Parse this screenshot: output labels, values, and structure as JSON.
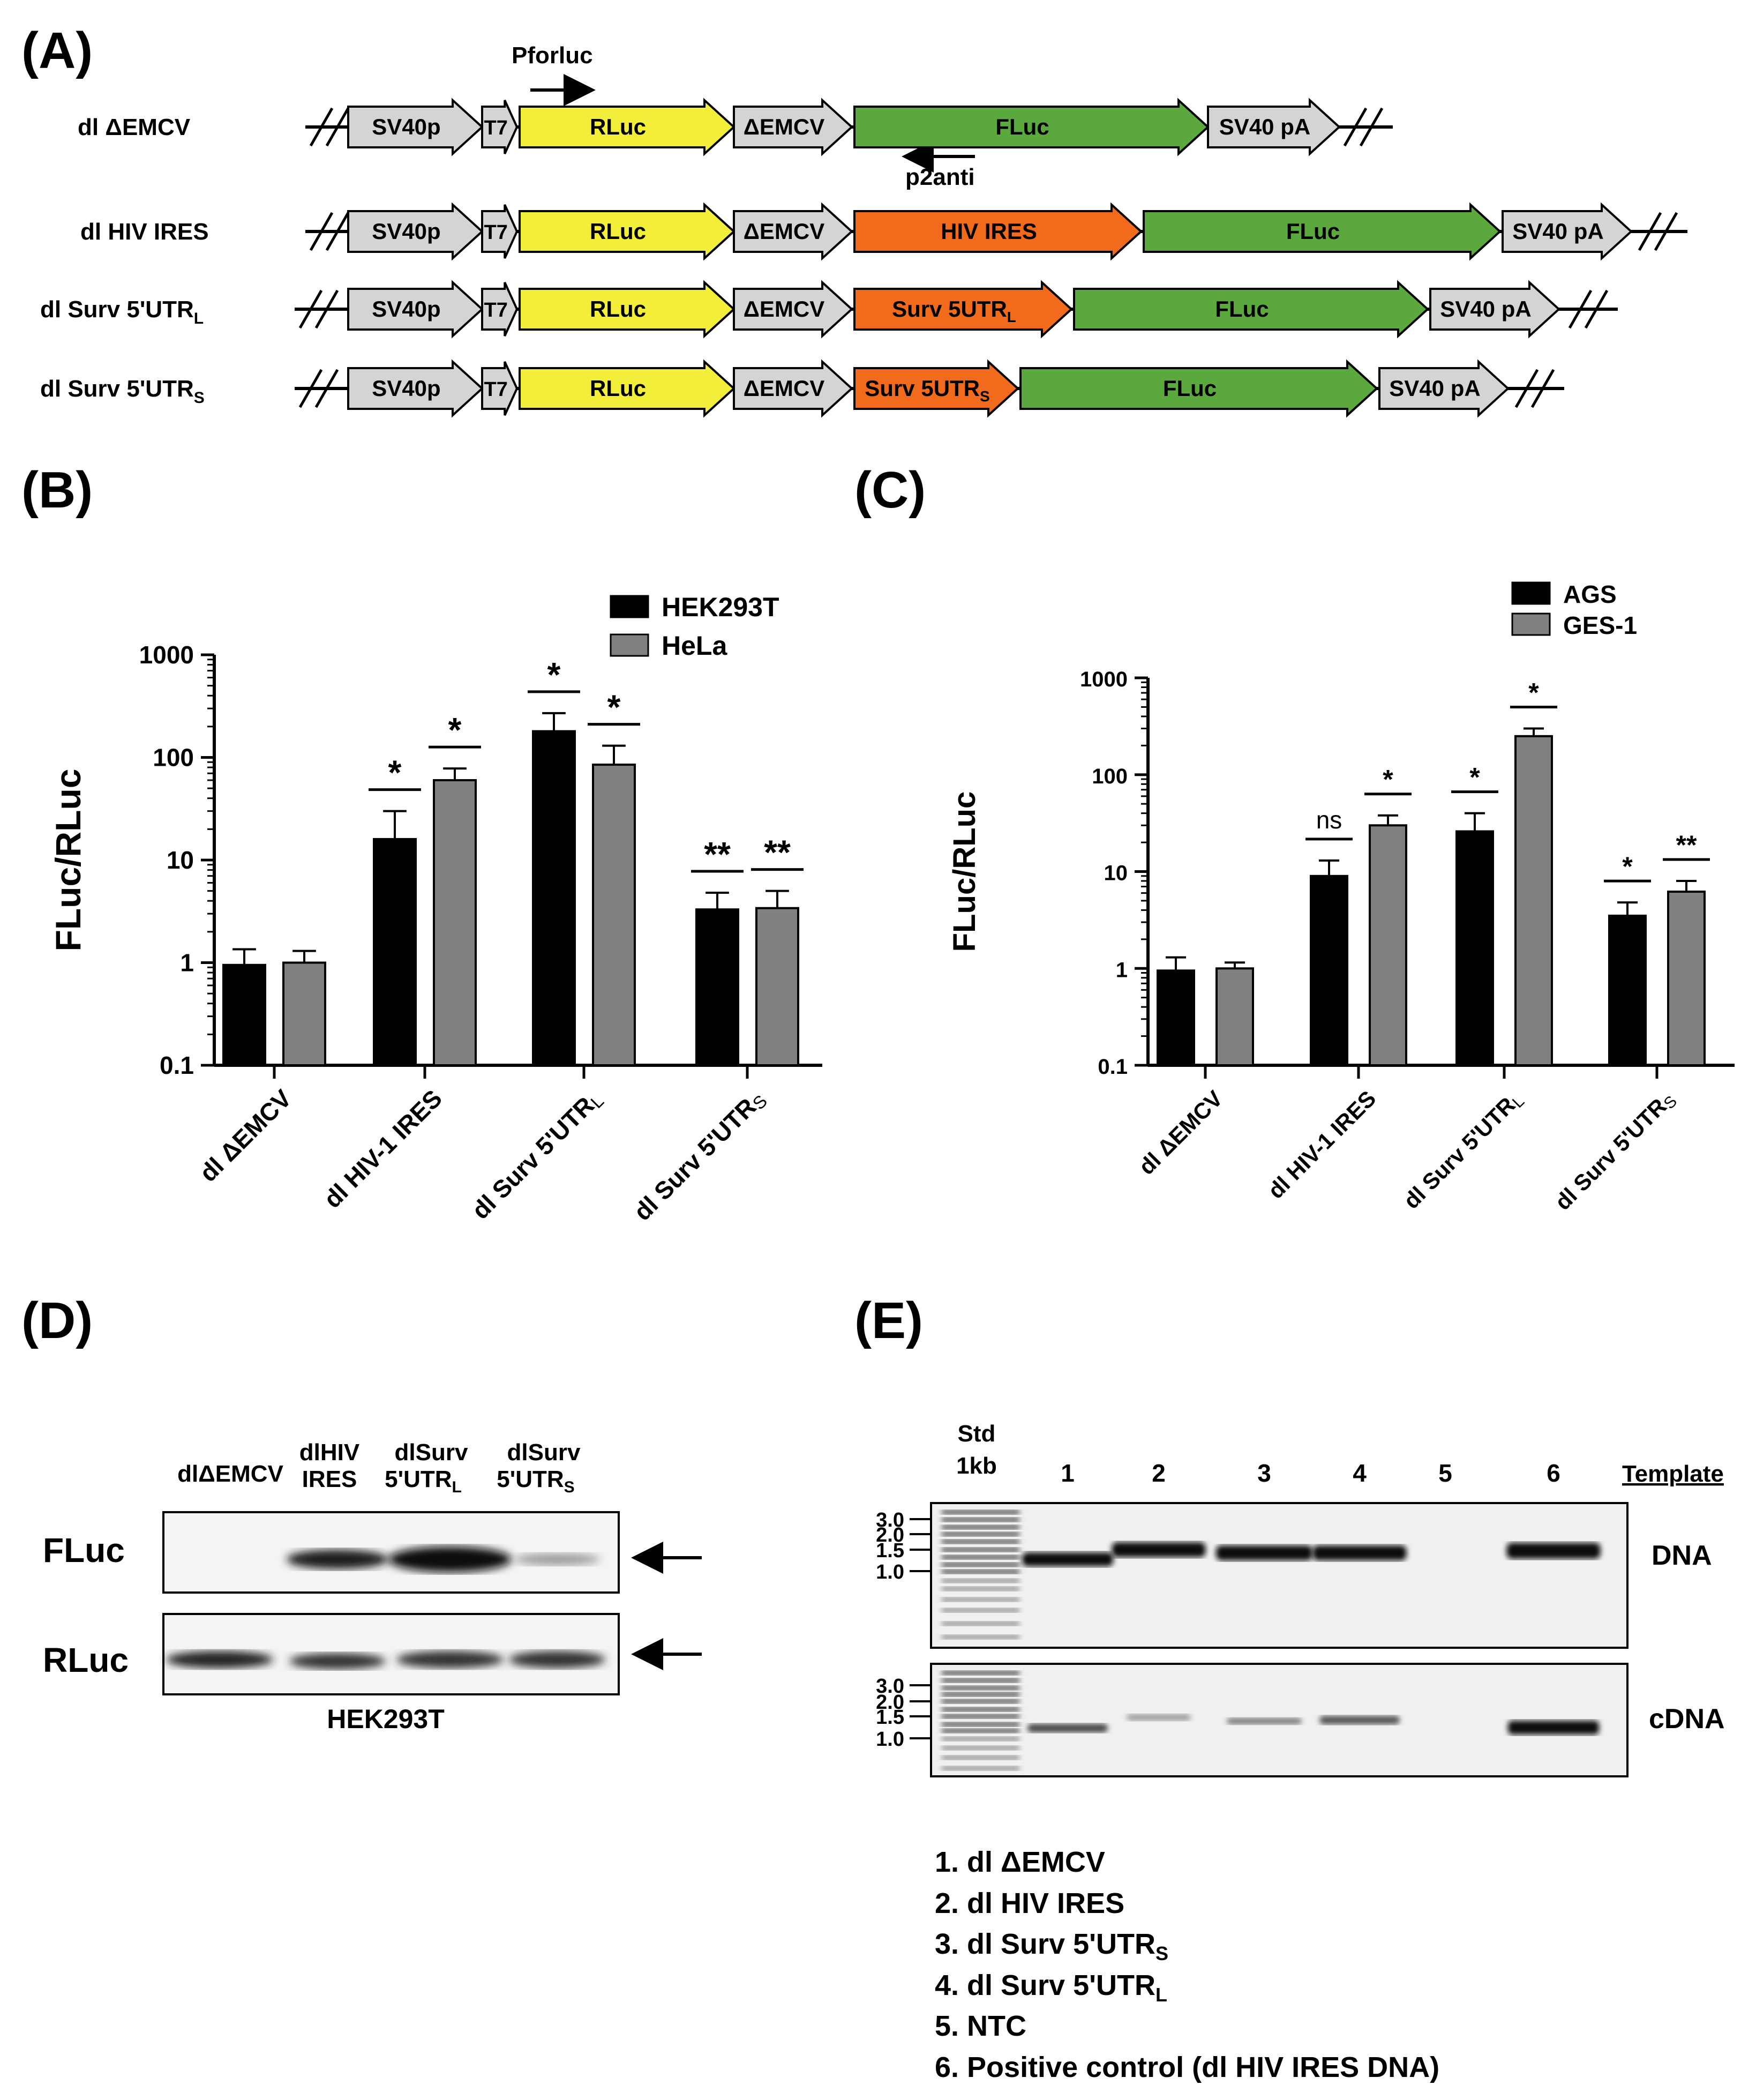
{
  "panels": {
    "A": "(A)",
    "B": "(B)",
    "C": "(C)",
    "D": "(D)",
    "E": "(E)"
  },
  "constructs": {
    "primer_forward": "Pforluc",
    "primer_reverse": "p2anti",
    "rows": [
      {
        "name": "dl ΔEMCV",
        "insert": "",
        "segments": [
          "SV40p",
          "T7",
          "RLuc",
          "ΔEMCV",
          "FLuc",
          "SV40 pA"
        ]
      },
      {
        "name": "dl HIV IRES",
        "insert": "HIV IRES",
        "segments": [
          "SV40p",
          "T7",
          "RLuc",
          "ΔEMCV",
          "HIV IRES",
          "FLuc",
          "SV40 pA"
        ]
      },
      {
        "name": "dl Surv 5'UTR",
        "sub": "L",
        "insert": "Surv 5UTR",
        "insert_sub": "L",
        "segments": [
          "SV40p",
          "T7",
          "RLuc",
          "ΔEMCV",
          "Surv 5UTR",
          "FLuc",
          "SV40 pA"
        ]
      },
      {
        "name": "dl Surv 5'UTR",
        "sub": "S",
        "insert": "Surv 5UTR",
        "insert_sub": "S",
        "segments": [
          "SV40p",
          "T7",
          "RLuc",
          "ΔEMCV",
          "Surv 5UTR",
          "FLuc",
          "SV40 pA"
        ]
      }
    ],
    "colors": {
      "promoter": "#d4d4d4",
      "rluc": "#f2ee3a",
      "fluc": "#5aa83e",
      "ires": "#f26a1b"
    }
  },
  "chart_data": [
    {
      "type": "bar",
      "panel": "B",
      "ylabel": "FLuc/RLuc",
      "yscale": "log",
      "ylim": [
        0.1,
        1000
      ],
      "yticks": [
        "0.1",
        "1",
        "10",
        "100",
        "1000"
      ],
      "categories": [
        "dl ΔEMCV",
        "dl HIV-1 IRES",
        "dl Surv 5'UTR",
        "dl Surv 5'UTR"
      ],
      "category_subs": [
        "",
        "",
        "L",
        "S"
      ],
      "series": [
        {
          "name": "HEK293T",
          "color": "#000000",
          "values": [
            0.95,
            16,
            180,
            3.3
          ],
          "errors": [
            1.35,
            30,
            270,
            4.8
          ],
          "sig": [
            "",
            "*",
            "*",
            "**"
          ]
        },
        {
          "name": "HeLa",
          "color": "#808080",
          "values": [
            1.0,
            60,
            85,
            3.4
          ],
          "errors": [
            1.3,
            78,
            130,
            5.0
          ],
          "sig": [
            "",
            "*",
            "*",
            "**"
          ]
        }
      ],
      "legend": [
        "HEK293T",
        "HeLa"
      ]
    },
    {
      "type": "bar",
      "panel": "C",
      "ylabel": "FLuc/RLuc",
      "yscale": "log",
      "ylim": [
        0.1,
        1000
      ],
      "yticks": [
        "0.1",
        "1",
        "10",
        "100",
        "1000"
      ],
      "categories": [
        "dl ΔEMCV",
        "dl HIV-1 IRES",
        "dl Surv 5'UTR",
        "dl Surv 5'UTR"
      ],
      "category_subs": [
        "",
        "",
        "L",
        "S"
      ],
      "series": [
        {
          "name": "AGS",
          "color": "#000000",
          "values": [
            0.95,
            9,
            26,
            3.5
          ],
          "errors": [
            1.3,
            13,
            40,
            4.8
          ],
          "sig": [
            "",
            "ns",
            "*",
            "*"
          ]
        },
        {
          "name": "GES-1",
          "color": "#808080",
          "values": [
            1.0,
            30,
            250,
            6.2
          ],
          "errors": [
            1.15,
            38,
            300,
            8
          ],
          "sig": [
            "",
            "*",
            "*",
            "**"
          ]
        }
      ],
      "legend": [
        "AGS",
        "GES-1"
      ]
    }
  ],
  "western": {
    "lanes": [
      {
        "l1": "dlΔEMCV",
        "l2": "",
        "sub": ""
      },
      {
        "l1": "dlHIV",
        "l2": "IRES",
        "sub": ""
      },
      {
        "l1": "dlSurv",
        "l2": "5'UTR",
        "sub": "L"
      },
      {
        "l1": "dlSurv",
        "l2": "5'UTR",
        "sub": "S"
      }
    ],
    "row1": "FLuc",
    "row2": "RLuc",
    "cell_line": "HEK293T"
  },
  "gel": {
    "ladder_title1": "Std",
    "ladder_title2": "1kb",
    "lanes": [
      "1",
      "2",
      "3",
      "4",
      "5",
      "6"
    ],
    "template_label": "Template",
    "sizes": [
      "3.0",
      "2.0",
      "1.5",
      "1.0"
    ],
    "dna_label": "DNA",
    "cdna_label": "cDNA",
    "legend": [
      {
        "text": "1. dl ΔEMCV",
        "sub": ""
      },
      {
        "text": "2. dl HIV IRES",
        "sub": ""
      },
      {
        "text": "3. dl Surv 5'UTR",
        "sub": "S"
      },
      {
        "text": "4. dl Surv 5'UTR",
        "sub": "L"
      },
      {
        "text": "5. NTC",
        "sub": ""
      },
      {
        "text": "6. Positive control (dl HIV IRES DNA)",
        "sub": ""
      }
    ]
  }
}
